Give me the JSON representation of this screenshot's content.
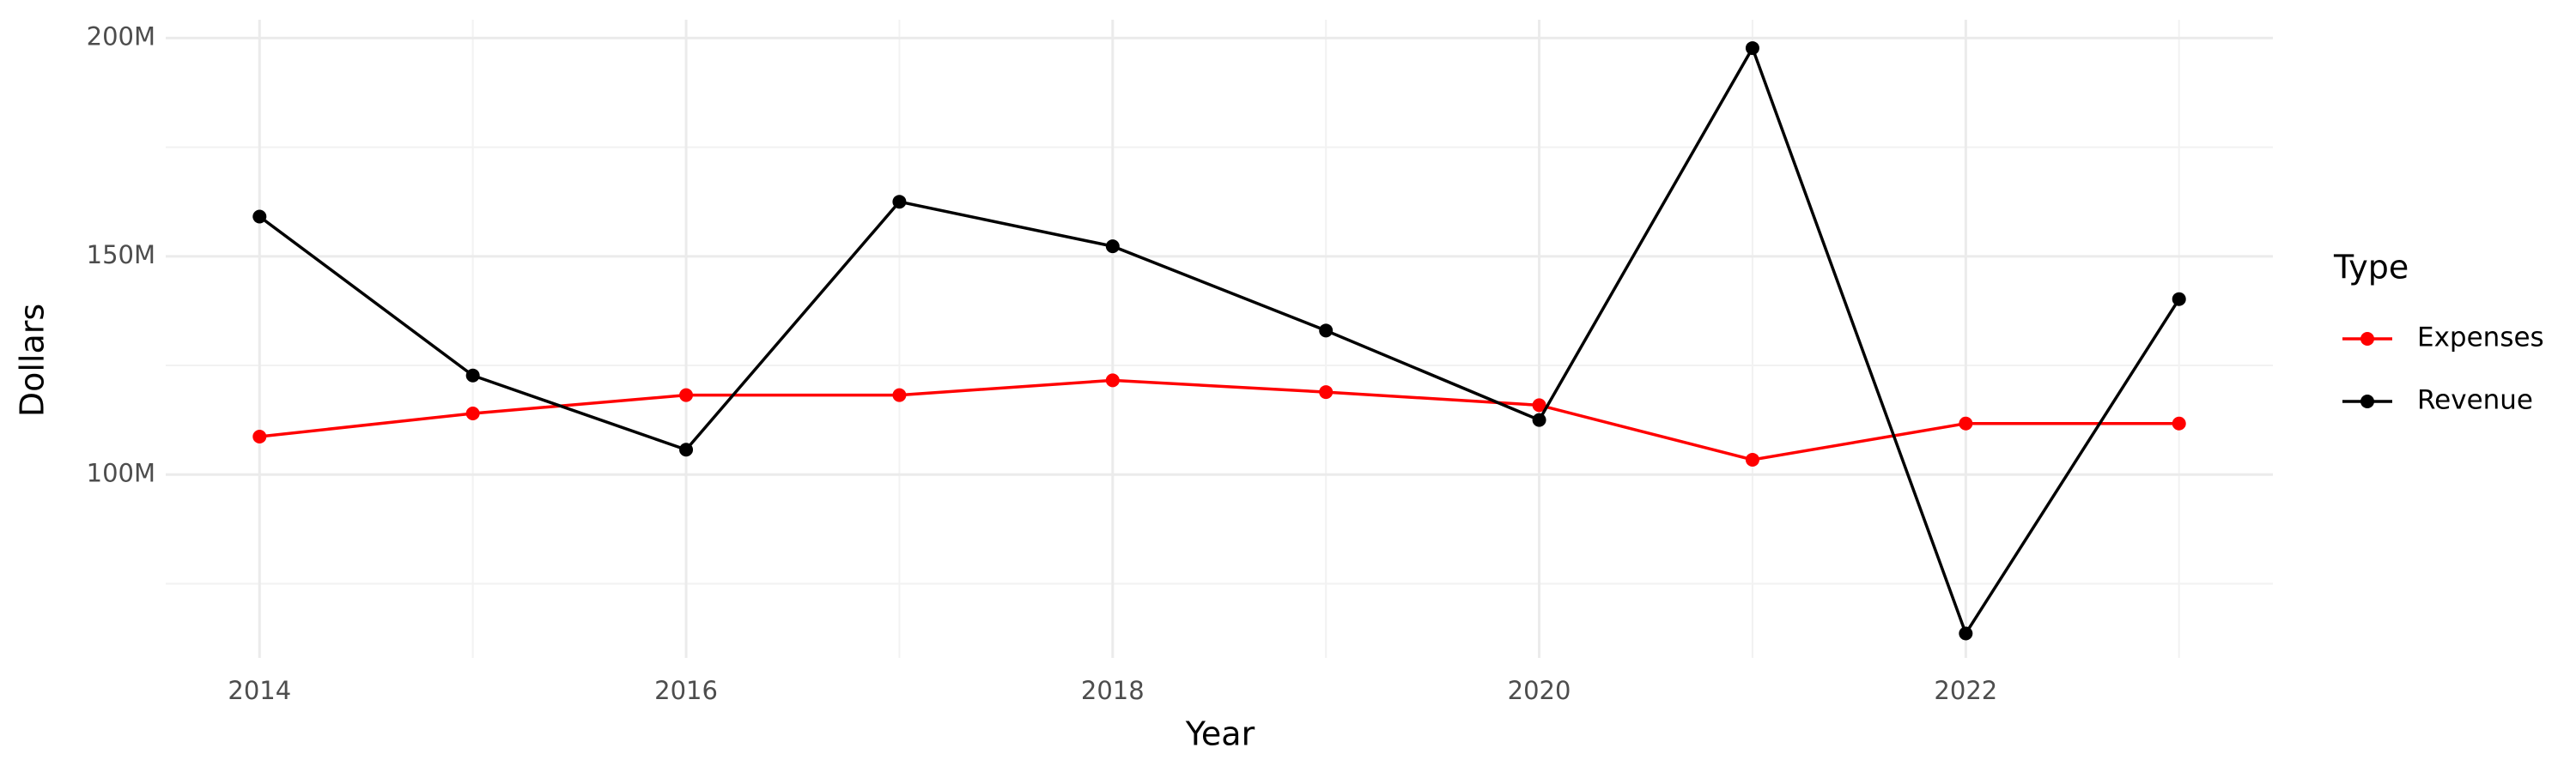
{
  "chart_data": {
    "type": "line",
    "x_label": "Year",
    "y_label": "Dollars",
    "legend_title": "Type",
    "legend_position": "right",
    "grid": true,
    "x": [
      2014,
      2015,
      2016,
      2017,
      2018,
      2019,
      2020,
      2021,
      2022,
      2023
    ],
    "series": [
      {
        "name": "Expenses",
        "color": "#ff0000",
        "values": [
          108700000,
          114000000,
          118200000,
          118200000,
          121600000,
          118900000,
          115900000,
          103400000,
          111700000,
          111700000
        ]
      },
      {
        "name": "Revenue",
        "color": "#000000",
        "values": [
          159100000,
          122700000,
          105700000,
          162500000,
          152300000,
          133000000,
          112500000,
          197700000,
          63600000,
          140200000
        ]
      }
    ],
    "xlim": [
      2013.56,
      2023.44
    ],
    "xticks": [
      2014,
      2016,
      2018,
      2020,
      2022
    ],
    "ylim": [
      58000000,
      204200000
    ],
    "yticks": [
      {
        "value": 100000000,
        "label": "100M"
      },
      {
        "value": 150000000,
        "label": "150M"
      },
      {
        "value": 200000000,
        "label": "200M"
      }
    ]
  }
}
